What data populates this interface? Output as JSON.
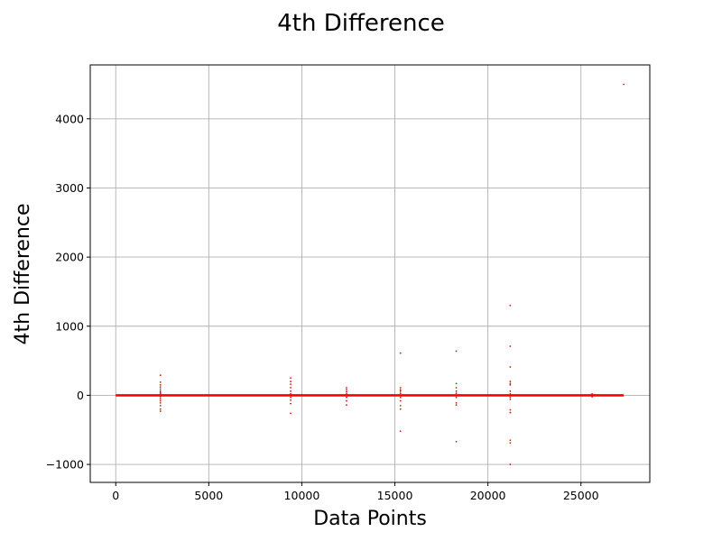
{
  "chart_data": {
    "type": "scatter",
    "title": "4th Difference",
    "xlabel": "Data Points",
    "ylabel": "4th Difference",
    "xlim": [
      -1370,
      28700
    ],
    "ylim": [
      -1260,
      4780
    ],
    "xticks": [
      0,
      5000,
      10000,
      15000,
      20000,
      25000
    ],
    "yticks": [
      -1000,
      0,
      1000,
      2000,
      3000,
      4000
    ],
    "xtick_labels": [
      "0",
      "5000",
      "10000",
      "15000",
      "20000",
      "25000"
    ],
    "ytick_labels": [
      "−1000",
      "0",
      "1000",
      "2000",
      "3000",
      "4000"
    ],
    "grid": true,
    "series": [
      {
        "color": "#ff0000",
        "marker": "point",
        "baseline": {
          "x_start": 0,
          "x_end": 27300,
          "y": 0
        },
        "points": [
          [
            2400,
            290
          ],
          [
            2400,
            190
          ],
          [
            2400,
            150
          ],
          [
            2400,
            120
          ],
          [
            2400,
            90
          ],
          [
            2400,
            60
          ],
          [
            2400,
            40
          ],
          [
            2400,
            20
          ],
          [
            2400,
            -20
          ],
          [
            2400,
            -50
          ],
          [
            2400,
            -80
          ],
          [
            2400,
            -110
          ],
          [
            2400,
            -150
          ],
          [
            2400,
            -200
          ],
          [
            2400,
            -230
          ],
          [
            9400,
            250
          ],
          [
            9400,
            200
          ],
          [
            9400,
            160
          ],
          [
            9400,
            110
          ],
          [
            9400,
            60
          ],
          [
            9400,
            20
          ],
          [
            9400,
            -30
          ],
          [
            9400,
            -70
          ],
          [
            9400,
            -120
          ],
          [
            9400,
            -260
          ],
          [
            12400,
            110
          ],
          [
            12400,
            80
          ],
          [
            12400,
            50
          ],
          [
            12400,
            20
          ],
          [
            12400,
            -30
          ],
          [
            12400,
            -80
          ],
          [
            12400,
            -140
          ],
          [
            15300,
            610
          ],
          [
            15300,
            110
          ],
          [
            15300,
            80
          ],
          [
            15300,
            60
          ],
          [
            15300,
            30
          ],
          [
            15300,
            -30
          ],
          [
            15300,
            -80
          ],
          [
            15300,
            -150
          ],
          [
            15300,
            -200
          ],
          [
            15300,
            -520
          ],
          [
            18300,
            640
          ],
          [
            18300,
            170
          ],
          [
            18300,
            110
          ],
          [
            18300,
            60
          ],
          [
            18300,
            30
          ],
          [
            18300,
            -30
          ],
          [
            18300,
            -110
          ],
          [
            18300,
            -140
          ],
          [
            18300,
            -670
          ],
          [
            21200,
            1300
          ],
          [
            21200,
            710
          ],
          [
            21200,
            410
          ],
          [
            21200,
            200
          ],
          [
            21200,
            170
          ],
          [
            21200,
            150
          ],
          [
            21200,
            60
          ],
          [
            21200,
            20
          ],
          [
            21200,
            -30
          ],
          [
            21200,
            -60
          ],
          [
            21200,
            -210
          ],
          [
            21200,
            -250
          ],
          [
            21200,
            -650
          ],
          [
            21200,
            -690
          ],
          [
            21200,
            -1000
          ],
          [
            25600,
            20
          ],
          [
            25600,
            -20
          ],
          [
            27300,
            4500
          ]
        ]
      }
    ]
  }
}
